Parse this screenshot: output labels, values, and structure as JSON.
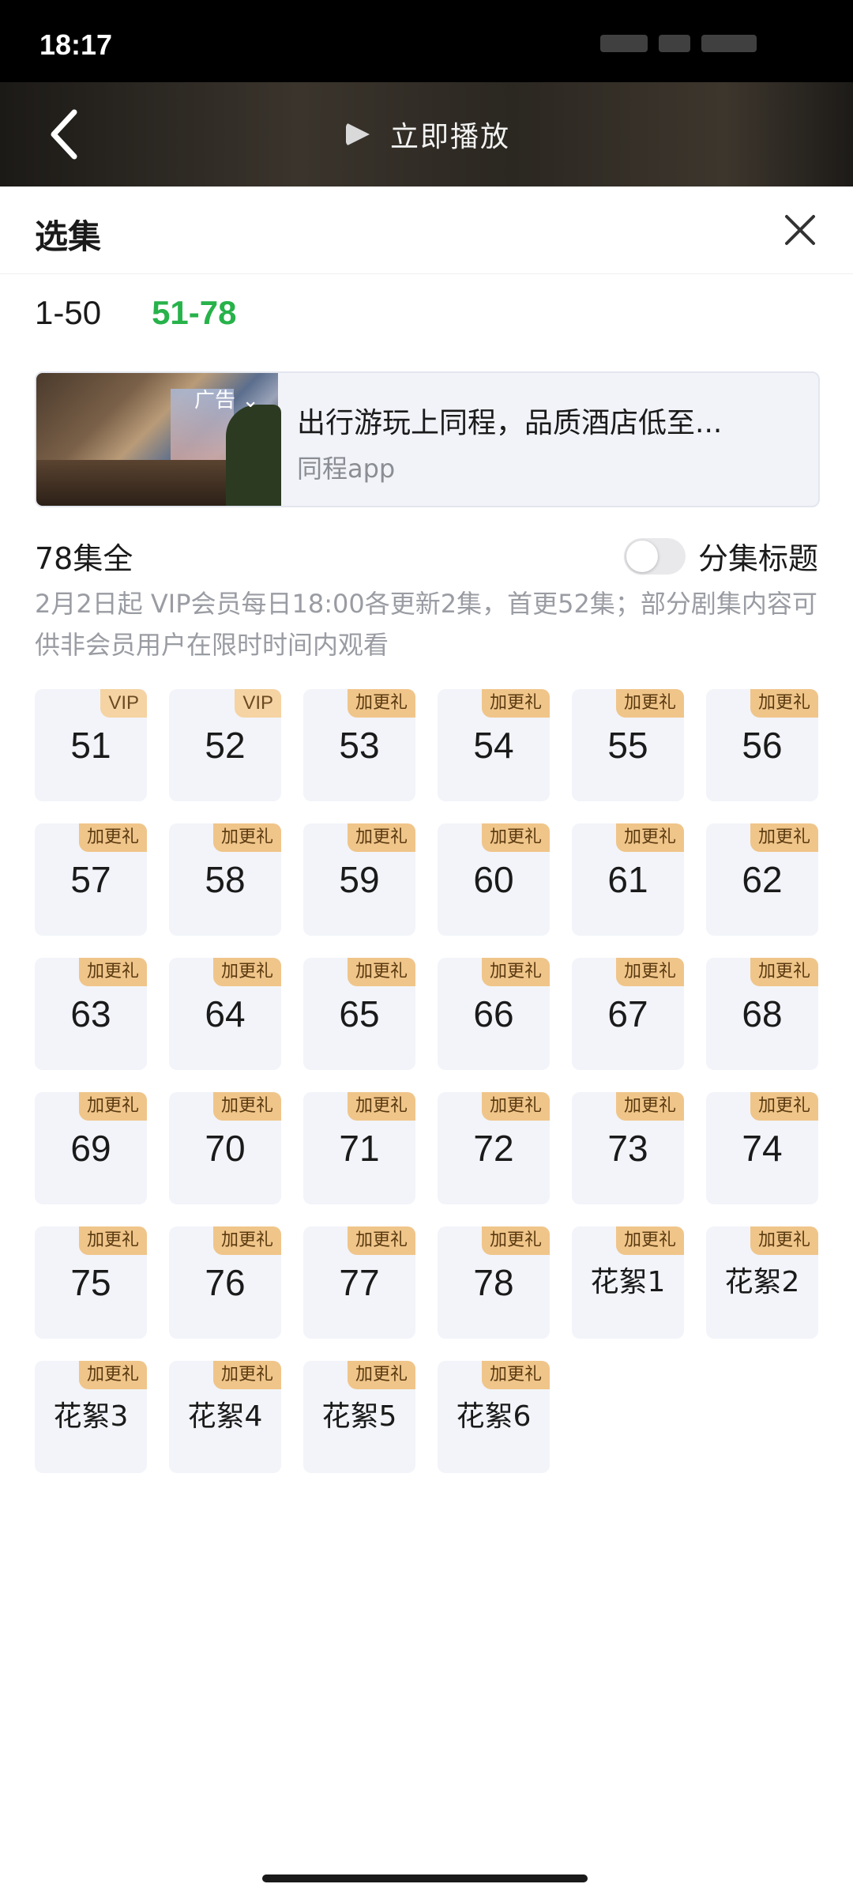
{
  "status_bar": {
    "time": "18:17"
  },
  "player": {
    "play_now_label": "立即播放"
  },
  "sheet": {
    "title": "选集"
  },
  "range_tabs": [
    {
      "label": "1-50",
      "active": false
    },
    {
      "label": "51-78",
      "active": true
    }
  ],
  "ad": {
    "badge": "广告",
    "title": "出行游玩上同程，品质酒店低至...",
    "source": "同程app"
  },
  "info": {
    "episode_count": "78集全",
    "toggle_label": "分集标题",
    "toggle_on": false,
    "notice": "2月2日起 VIP会员每日18:00各更新2集，首更52集；部分剧集内容可供非会员用户在限时时间内观看"
  },
  "episodes": [
    {
      "label": "51",
      "tag": "VIP"
    },
    {
      "label": "52",
      "tag": "VIP"
    },
    {
      "label": "53",
      "tag": "加更礼"
    },
    {
      "label": "54",
      "tag": "加更礼"
    },
    {
      "label": "55",
      "tag": "加更礼"
    },
    {
      "label": "56",
      "tag": "加更礼"
    },
    {
      "label": "57",
      "tag": "加更礼"
    },
    {
      "label": "58",
      "tag": "加更礼"
    },
    {
      "label": "59",
      "tag": "加更礼"
    },
    {
      "label": "60",
      "tag": "加更礼"
    },
    {
      "label": "61",
      "tag": "加更礼"
    },
    {
      "label": "62",
      "tag": "加更礼"
    },
    {
      "label": "63",
      "tag": "加更礼"
    },
    {
      "label": "64",
      "tag": "加更礼"
    },
    {
      "label": "65",
      "tag": "加更礼"
    },
    {
      "label": "66",
      "tag": "加更礼"
    },
    {
      "label": "67",
      "tag": "加更礼"
    },
    {
      "label": "68",
      "tag": "加更礼"
    },
    {
      "label": "69",
      "tag": "加更礼"
    },
    {
      "label": "70",
      "tag": "加更礼"
    },
    {
      "label": "71",
      "tag": "加更礼"
    },
    {
      "label": "72",
      "tag": "加更礼"
    },
    {
      "label": "73",
      "tag": "加更礼"
    },
    {
      "label": "74",
      "tag": "加更礼"
    },
    {
      "label": "75",
      "tag": "加更礼"
    },
    {
      "label": "76",
      "tag": "加更礼"
    },
    {
      "label": "77",
      "tag": "加更礼"
    },
    {
      "label": "78",
      "tag": "加更礼"
    },
    {
      "label": "花絮1",
      "tag": "加更礼"
    },
    {
      "label": "花絮2",
      "tag": "加更礼"
    },
    {
      "label": "花絮3",
      "tag": "加更礼"
    },
    {
      "label": "花絮4",
      "tag": "加更礼"
    },
    {
      "label": "花絮5",
      "tag": "加更礼"
    },
    {
      "label": "花絮6",
      "tag": "加更礼"
    }
  ],
  "colors": {
    "accent_green": "#27b24a",
    "tag_gold": "#f0c58a",
    "tile_bg": "#f2f4f9"
  }
}
